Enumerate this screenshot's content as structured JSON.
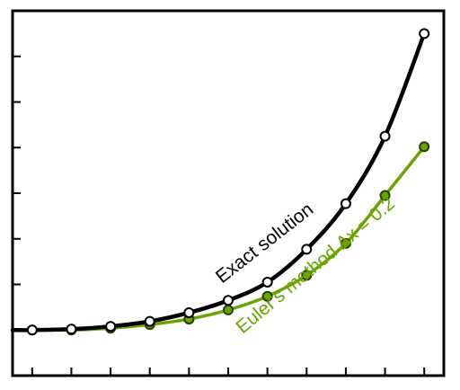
{
  "chart_data": {
    "type": "line",
    "title": "",
    "xlabel": "",
    "ylabel": "",
    "xlim": [
      -0.1,
      2.1
    ],
    "ylim": [
      0,
      8
    ],
    "x_ticks": [
      0,
      0.2,
      0.4,
      0.6,
      0.8,
      1.0,
      1.2,
      1.4,
      1.6,
      1.8,
      2.0,
      2.2
    ],
    "y_ticks": [
      0,
      1,
      2,
      3,
      4,
      5,
      6,
      7,
      8
    ],
    "grid": false,
    "series": [
      {
        "name": "Exact solution",
        "color": "#000000",
        "marker": "open-circle",
        "x": [
          0.0,
          0.2,
          0.4,
          0.6,
          0.8,
          1.0,
          1.2,
          1.4,
          1.6,
          1.8,
          2.0
        ],
        "y": [
          1.0,
          1.02,
          1.08,
          1.19,
          1.38,
          1.65,
          2.05,
          2.77,
          3.77,
          5.25,
          7.5
        ]
      },
      {
        "name": "Euler's method Δx = 0.2",
        "color": "#6aa400",
        "marker": "filled-circle",
        "x": [
          0.0,
          0.2,
          0.4,
          0.6,
          0.8,
          1.0,
          1.2,
          1.4,
          1.6,
          1.8,
          2.0
        ],
        "y": [
          1.0,
          1.0,
          1.04,
          1.12,
          1.24,
          1.44,
          1.74,
          2.2,
          2.9,
          3.95,
          5.02
        ]
      }
    ],
    "annotations": [
      {
        "text": "Exact solution",
        "series": 0
      },
      {
        "text": "Euler's method Δx = 0.2",
        "series": 1
      }
    ]
  }
}
